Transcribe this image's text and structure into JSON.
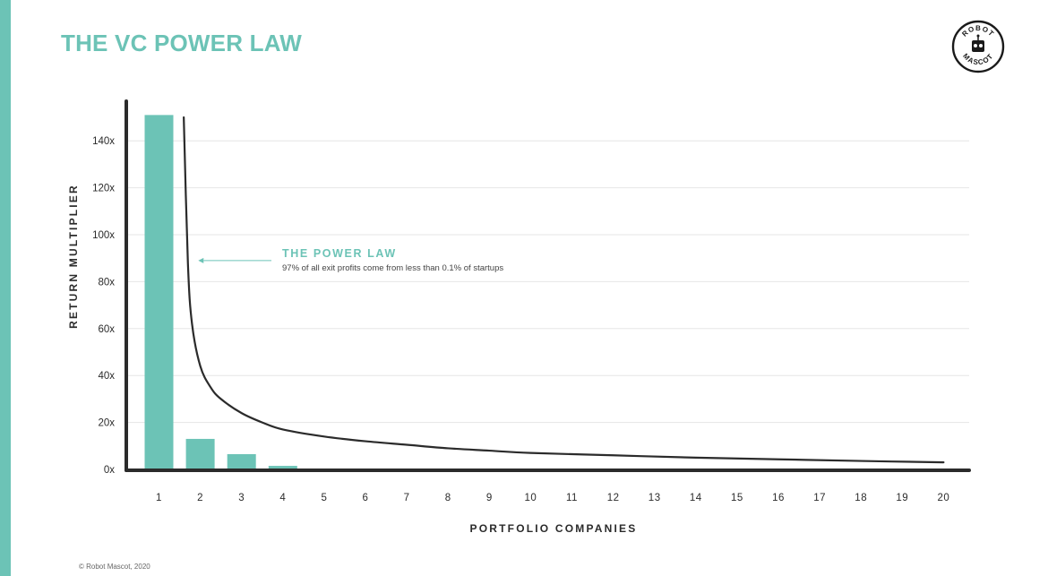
{
  "title": "THE VC POWER LAW",
  "logo": {
    "text_top": "ROBOT",
    "text_bottom": "MASCOT",
    "icon": "robot-mascot-logo-icon"
  },
  "footer": "© Robot Mascot, 2020",
  "colors": {
    "accent": "#6cc3b6",
    "axis": "#2b2b2b",
    "curve": "#2b2b2b",
    "grid": "#e6e6e6"
  },
  "chart_data": {
    "type": "bar",
    "title": "THE VC POWER LAW",
    "xlabel": "PORTFOLIO COMPANIES",
    "ylabel": "RETURN MULTIPLIER",
    "categories": [
      "1",
      "2",
      "3",
      "4",
      "5",
      "6",
      "7",
      "8",
      "9",
      "10",
      "11",
      "12",
      "13",
      "14",
      "15",
      "16",
      "17",
      "18",
      "19",
      "20"
    ],
    "values": [
      151,
      13,
      6.5,
      1.5,
      0,
      0,
      0,
      0,
      0,
      0,
      0,
      0,
      0,
      0,
      0,
      0,
      0,
      0,
      0,
      0
    ],
    "yticks": [
      0,
      20,
      40,
      60,
      80,
      100,
      120,
      140
    ],
    "ytick_labels": [
      "0x",
      "20x",
      "40x",
      "60x",
      "80x",
      "100x",
      "120x",
      "140x"
    ],
    "ylim": [
      0,
      155
    ],
    "grid": true,
    "curve": {
      "type": "line",
      "x": [
        1.6,
        1.7,
        1.8,
        2,
        2.25,
        2.5,
        3,
        3.5,
        4,
        5,
        6,
        7,
        8,
        9,
        10,
        12,
        14,
        16,
        18,
        20
      ],
      "values": [
        150,
        88,
        62,
        44,
        35,
        30,
        24,
        20,
        17,
        14,
        12,
        10.5,
        9,
        8,
        7,
        6,
        5,
        4.3,
        3.6,
        3
      ]
    },
    "annotation": {
      "title": "THE POWER LAW",
      "text": "97% of all exit profits come from less than 0.1% of startups",
      "arrow_to": {
        "x": 1.95,
        "y": 89
      }
    }
  }
}
